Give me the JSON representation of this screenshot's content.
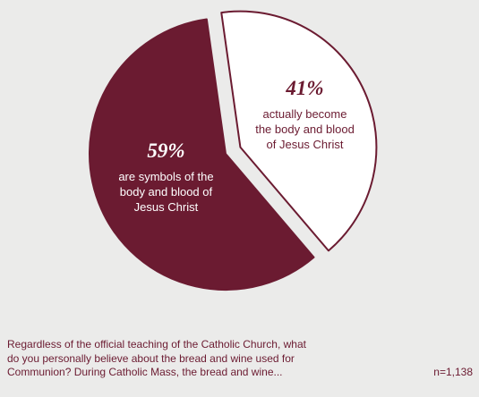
{
  "chart_data": {
    "type": "pie",
    "slices": [
      {
        "value": 59,
        "value_label": "59%",
        "description_lines": [
          "are symbols of the",
          "body and blood of",
          "Jesus Christ"
        ],
        "exploded": false
      },
      {
        "value": 41,
        "value_label": "41%",
        "description_lines": [
          "actually become",
          "the body and blood",
          "of Jesus Christ"
        ],
        "exploded": true
      }
    ],
    "colors": {
      "symbols_slice": "#6b1b31",
      "become_slice": "#ffffff",
      "slice_outline": "#6b1b31",
      "symbols_text": "#ffffff",
      "become_text": "#6b1b31"
    }
  },
  "question_lines": [
    "Regardless of the official teaching of the Catholic Church, what",
    "do you personally believe about the bread and wine used for",
    "Communion? During Catholic Mass, the bread and wine..."
  ],
  "sample_size": "n=1,138"
}
